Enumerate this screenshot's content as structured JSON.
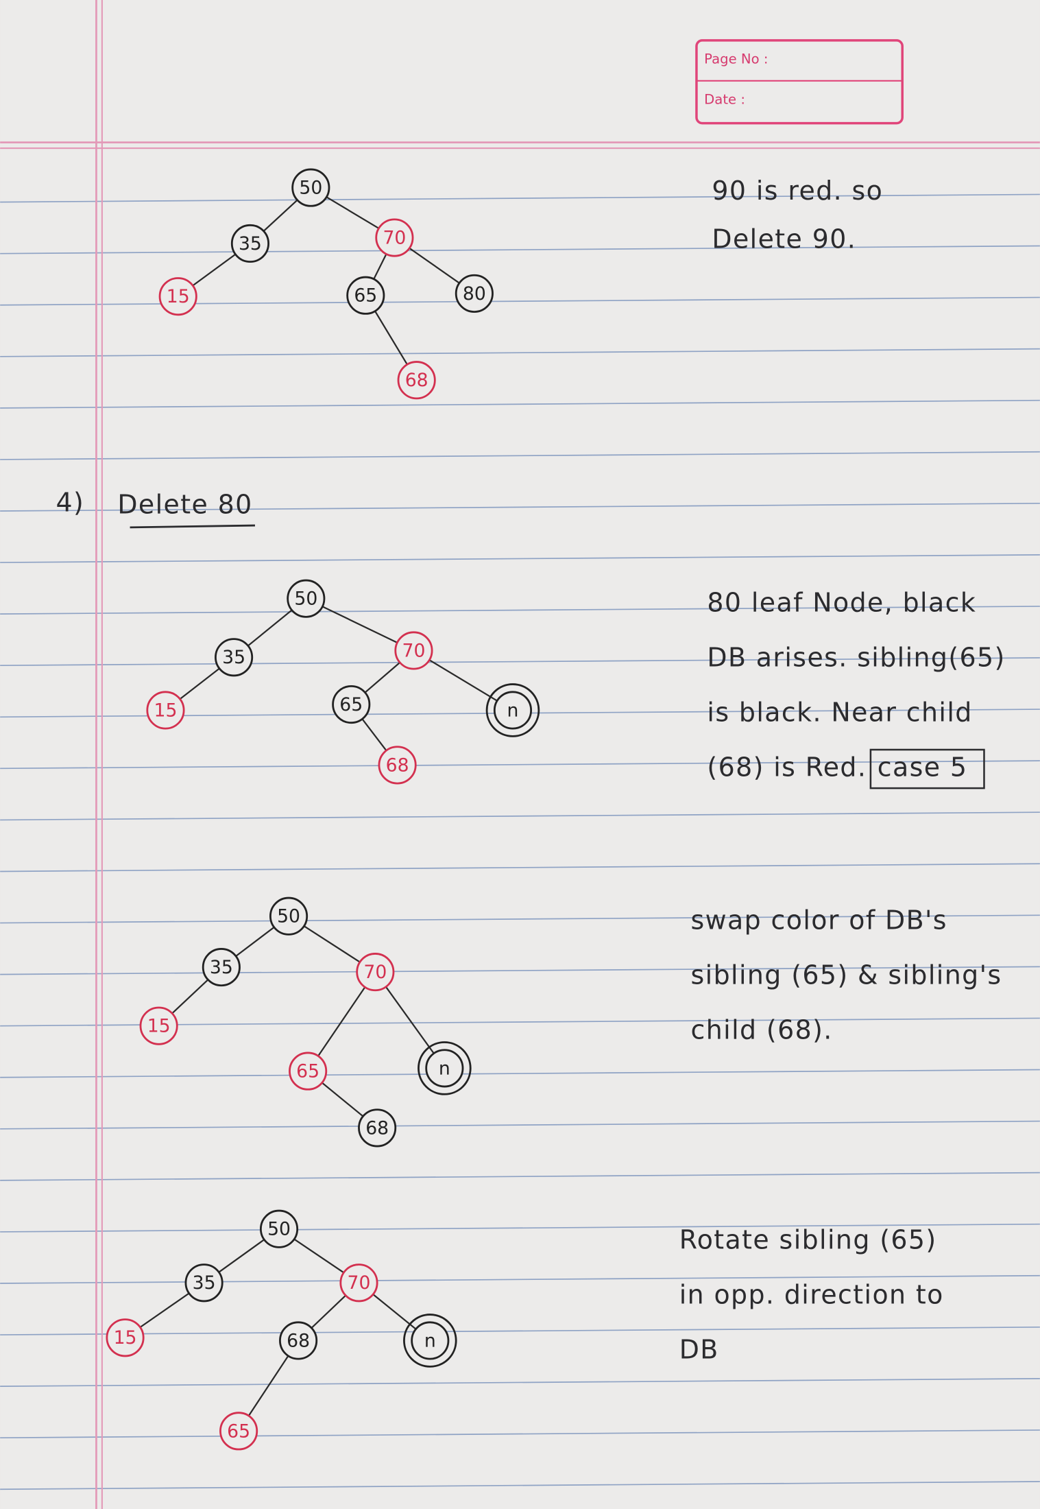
{
  "header": {
    "page_no": "Page No :",
    "date": "Date :"
  },
  "trees": [
    {
      "nodes": [
        {
          "label": "50",
          "color": "black"
        },
        {
          "label": "35",
          "color": "black"
        },
        {
          "label": "70",
          "color": "red"
        },
        {
          "label": "15",
          "color": "red"
        },
        {
          "label": "65",
          "color": "black"
        },
        {
          "label": "80",
          "color": "black"
        },
        {
          "label": "68",
          "color": "red"
        }
      ],
      "notes": [
        "90 is red. so",
        "Delete 90."
      ]
    },
    {
      "nodes": [
        {
          "label": "50",
          "color": "black"
        },
        {
          "label": "35",
          "color": "black"
        },
        {
          "label": "70",
          "color": "red"
        },
        {
          "label": "15",
          "color": "red"
        },
        {
          "label": "65",
          "color": "black"
        },
        {
          "label": "n",
          "color": "black",
          "double": true
        },
        {
          "label": "68",
          "color": "red"
        }
      ],
      "notes": [
        "80 leaf Node, black",
        "DB arises. sibling(65)",
        "is black. Near child",
        "(68) is Red."
      ],
      "case_box": "case 5"
    },
    {
      "nodes": [
        {
          "label": "50",
          "color": "black"
        },
        {
          "label": "35",
          "color": "black"
        },
        {
          "label": "70",
          "color": "red"
        },
        {
          "label": "15",
          "color": "red"
        },
        {
          "label": "65",
          "color": "red"
        },
        {
          "label": "n",
          "color": "black",
          "double": true
        },
        {
          "label": "68",
          "color": "black"
        }
      ],
      "notes": [
        "swap color of DB's",
        "sibling (65) & sibling's",
        "child (68)."
      ]
    },
    {
      "nodes": [
        {
          "label": "50",
          "color": "black"
        },
        {
          "label": "35",
          "color": "black"
        },
        {
          "label": "70",
          "color": "red"
        },
        {
          "label": "15",
          "color": "red"
        },
        {
          "label": "68",
          "color": "black"
        },
        {
          "label": "n",
          "color": "black",
          "double": true
        },
        {
          "label": "65",
          "color": "red"
        }
      ],
      "notes": [
        "Rotate sibling (65)",
        "in opp. direction to",
        "DB"
      ]
    }
  ],
  "heading": {
    "number": "4)",
    "title": "Delete 80"
  }
}
